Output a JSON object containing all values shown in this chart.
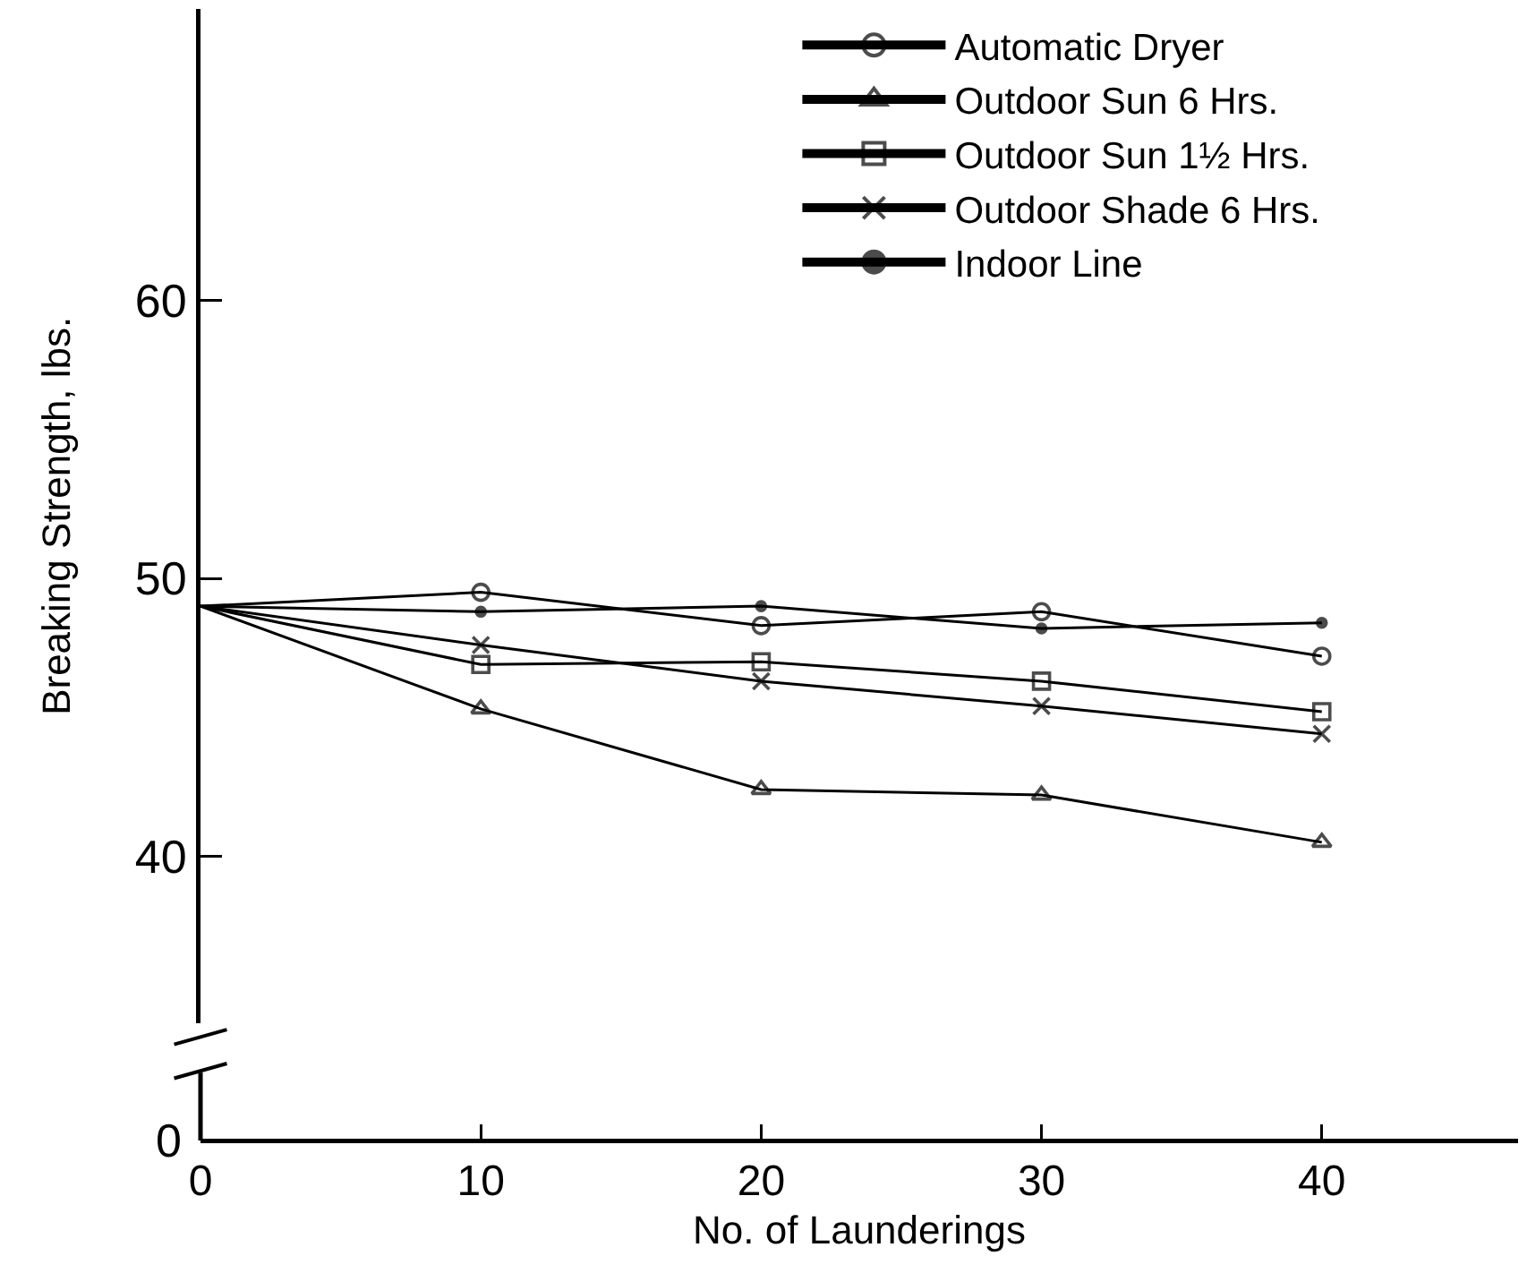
{
  "chart_data": {
    "type": "line",
    "xlabel": "No. of Launderings",
    "ylabel": "Breaking Strength, lbs.",
    "x": [
      0,
      10,
      20,
      30,
      40
    ],
    "xlim": [
      0,
      47
    ],
    "xticks": [
      0,
      10,
      20,
      30,
      40
    ],
    "ylim": [
      34,
      70.5
    ],
    "yticks": [
      40,
      50,
      60
    ],
    "legend": "top right",
    "line_style": "solid",
    "annotations": [
      "0"
    ],
    "series": [
      {
        "name": "Automatic Dryer",
        "color": "#000000",
        "marker": "circle",
        "values": [
          49.0,
          49.5,
          48.3,
          48.8,
          47.2
        ]
      },
      {
        "name": "Outdoor Sun 6 Hrs.",
        "color": "#000000",
        "marker": "triangle",
        "values": [
          49.0,
          45.3,
          42.4,
          42.2,
          40.5
        ]
      },
      {
        "name": "Outdoor Sun 1½ Hrs.",
        "color": "#000000",
        "marker": "square",
        "values": [
          49.0,
          46.9,
          47.0,
          46.3,
          45.2
        ]
      },
      {
        "name": "Outdoor Shade 6 Hrs.",
        "color": "#000000",
        "marker": "cross",
        "values": [
          49.0,
          47.6,
          46.3,
          45.4,
          44.4
        ]
      },
      {
        "name": "Indoor Line",
        "color": "#000000",
        "marker": "circle",
        "values": [
          49.0,
          48.8,
          49.0,
          48.2,
          48.4
        ]
      }
    ]
  }
}
